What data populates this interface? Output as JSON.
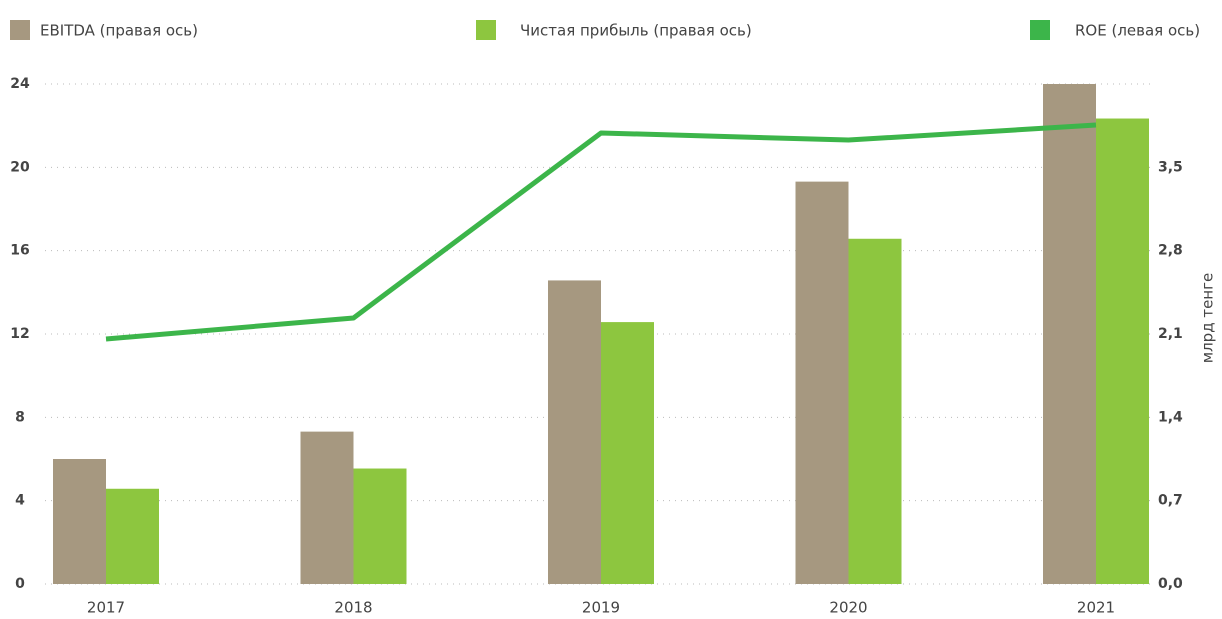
{
  "chart_data": {
    "type": "bar_line",
    "y_axis_label": "млрд тенге",
    "categories": [
      "2017",
      "2018",
      "2019",
      "2020",
      "2021"
    ],
    "series": [
      {
        "name": "EBITDA (правая ось)",
        "color": "#a69880",
        "type": "bar",
        "axis": "y2",
        "values": [
          1.05,
          1.28,
          2.55,
          3.38,
          4.2
        ]
      },
      {
        "name": "Чистая прибыль (правая ось)",
        "color": "#8dc63f",
        "type": "bar",
        "axis": "y2",
        "values": [
          0.8,
          0.97,
          2.2,
          2.9,
          3.91
        ]
      },
      {
        "name": "ROE (левая ось)",
        "color": "#3cb54a",
        "type": "line",
        "values": [
          11.76,
          12.77,
          21.65,
          21.31,
          22.03
        ]
      }
    ],
    "ylim": [
      0,
      24
    ],
    "yticks": [
      0,
      4,
      8,
      12,
      16,
      20,
      24
    ],
    "y2lim": [
      0,
      4.2
    ],
    "y2ticks": [
      {
        "value": 0,
        "label": "0,0"
      },
      {
        "value": 0.7,
        "label": "0,7"
      },
      {
        "value": 1.4,
        "label": "1,4"
      },
      {
        "value": 2.1,
        "label": "2,1"
      },
      {
        "value": 2.8,
        "label": "2,8"
      },
      {
        "value": 3.5,
        "label": "3,5"
      }
    ],
    "grid": true
  }
}
